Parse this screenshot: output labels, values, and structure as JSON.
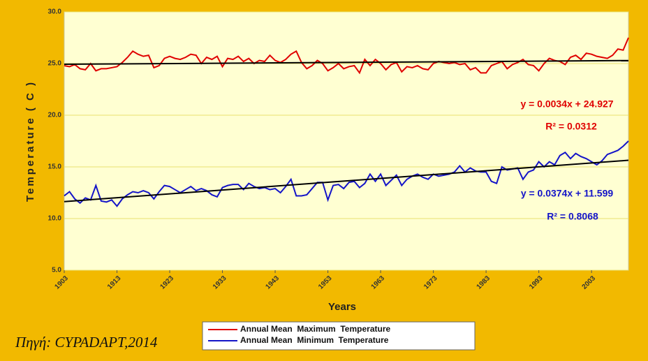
{
  "chart_data": {
    "type": "line",
    "y_label": "Temperature ( C )",
    "x_label": "Years",
    "source": "Πηγή: CYPADAPT,2014",
    "x": [
      1903,
      1904,
      1905,
      1906,
      1907,
      1908,
      1909,
      1910,
      1911,
      1912,
      1913,
      1914,
      1915,
      1916,
      1917,
      1918,
      1919,
      1920,
      1921,
      1922,
      1923,
      1924,
      1925,
      1926,
      1927,
      1928,
      1929,
      1930,
      1931,
      1932,
      1933,
      1934,
      1935,
      1936,
      1937,
      1938,
      1939,
      1940,
      1941,
      1942,
      1943,
      1944,
      1945,
      1946,
      1947,
      1948,
      1949,
      1950,
      1951,
      1952,
      1953,
      1954,
      1955,
      1956,
      1957,
      1958,
      1959,
      1960,
      1961,
      1962,
      1963,
      1964,
      1965,
      1966,
      1967,
      1968,
      1969,
      1970,
      1971,
      1972,
      1973,
      1974,
      1975,
      1976,
      1977,
      1978,
      1979,
      1980,
      1981,
      1982,
      1983,
      1984,
      1985,
      1986,
      1987,
      1988,
      1989,
      1990,
      1991,
      1992,
      1993,
      1994,
      1995,
      1996,
      1997,
      1998,
      1999,
      2000,
      2001,
      2002,
      2003,
      2004,
      2005,
      2006,
      2007,
      2008,
      2009,
      2010
    ],
    "series": [
      {
        "name": "Annual Mean  Maximum  Temperature",
        "color": "#e00000",
        "values": [
          24.8,
          24.7,
          24.9,
          24.5,
          24.4,
          25.0,
          24.3,
          24.5,
          24.5,
          24.6,
          24.7,
          25.1,
          25.6,
          26.2,
          25.9,
          25.7,
          25.8,
          24.6,
          24.8,
          25.5,
          25.7,
          25.5,
          25.4,
          25.6,
          25.9,
          25.8,
          25.0,
          25.6,
          25.4,
          25.7,
          24.7,
          25.5,
          25.4,
          25.7,
          25.2,
          25.5,
          25.0,
          25.3,
          25.2,
          25.8,
          25.3,
          25.1,
          25.4,
          25.9,
          26.2,
          25.1,
          24.5,
          24.8,
          25.3,
          25.0,
          24.3,
          24.6,
          25.0,
          24.5,
          24.7,
          24.8,
          24.1,
          25.4,
          24.8,
          25.4,
          25.0,
          24.4,
          24.9,
          25.1,
          24.2,
          24.7,
          24.6,
          24.8,
          24.5,
          24.4,
          25.0,
          25.2,
          25.1,
          25.0,
          25.1,
          24.9,
          25.0,
          24.4,
          24.6,
          24.1,
          24.1,
          24.8,
          25.0,
          25.2,
          24.5,
          24.9,
          25.1,
          25.4,
          24.9,
          24.8,
          24.3,
          25.0,
          25.5,
          25.3,
          25.2,
          24.9,
          25.6,
          25.8,
          25.4,
          26.0,
          25.9,
          25.7,
          25.6,
          25.5,
          25.8,
          26.4,
          26.3,
          27.5
        ]
      },
      {
        "name": "Annual Mean  Minimum  Temperature",
        "color": "#1414c8",
        "values": [
          12.2,
          12.6,
          11.9,
          11.5,
          12.0,
          11.8,
          13.2,
          11.7,
          11.6,
          11.8,
          11.2,
          11.9,
          12.3,
          12.6,
          12.5,
          12.7,
          12.5,
          11.9,
          12.6,
          13.2,
          13.1,
          12.8,
          12.5,
          12.8,
          13.1,
          12.7,
          12.9,
          12.7,
          12.3,
          12.1,
          13.0,
          13.2,
          13.3,
          13.3,
          12.8,
          13.4,
          13.1,
          12.9,
          13.0,
          12.8,
          12.9,
          12.5,
          13.1,
          13.8,
          12.2,
          12.2,
          12.3,
          12.9,
          13.5,
          13.5,
          11.8,
          13.2,
          13.3,
          12.9,
          13.5,
          13.6,
          13.0,
          13.4,
          14.3,
          13.6,
          14.3,
          13.2,
          13.7,
          14.2,
          13.2,
          13.8,
          14.1,
          14.3,
          14.0,
          13.8,
          14.3,
          14.1,
          14.2,
          14.3,
          14.5,
          15.1,
          14.5,
          14.9,
          14.6,
          14.5,
          14.5,
          13.6,
          13.4,
          15.0,
          14.7,
          14.8,
          14.9,
          13.8,
          14.5,
          14.7,
          15.5,
          15.0,
          15.5,
          15.2,
          16.1,
          16.4,
          15.8,
          16.3,
          16.0,
          15.8,
          15.5,
          15.2,
          15.6,
          16.2,
          16.4,
          16.6,
          17.0,
          17.5
        ]
      }
    ],
    "trendlines": [
      {
        "color": "#000000",
        "x": [
          1903,
          2010
        ],
        "values": [
          24.93,
          25.29
        ],
        "equation": "y = 0.0034x + 24.927",
        "r2": "R² = 0.0312"
      },
      {
        "color": "#000000",
        "x": [
          1903,
          2010
        ],
        "values": [
          11.64,
          15.64
        ],
        "equation": "y = 0.0374x + 11.599",
        "r2": "R² = 0.8068"
      }
    ],
    "xlim": [
      1903,
      2010
    ],
    "xticks": [
      1903,
      1913,
      1923,
      1933,
      1943,
      1953,
      1963,
      1973,
      1983,
      1993,
      2003
    ],
    "ylim": [
      5,
      30
    ],
    "yticks": [
      {
        "value": 5,
        "label": "5.0"
      },
      {
        "value": 10,
        "label": "10.0"
      },
      {
        "value": 15,
        "label": "15.0"
      },
      {
        "value": 20,
        "label": "20.0"
      },
      {
        "value": 25,
        "label": "25.0"
      },
      {
        "value": 30,
        "label": "30.0"
      }
    ],
    "grid": true
  }
}
